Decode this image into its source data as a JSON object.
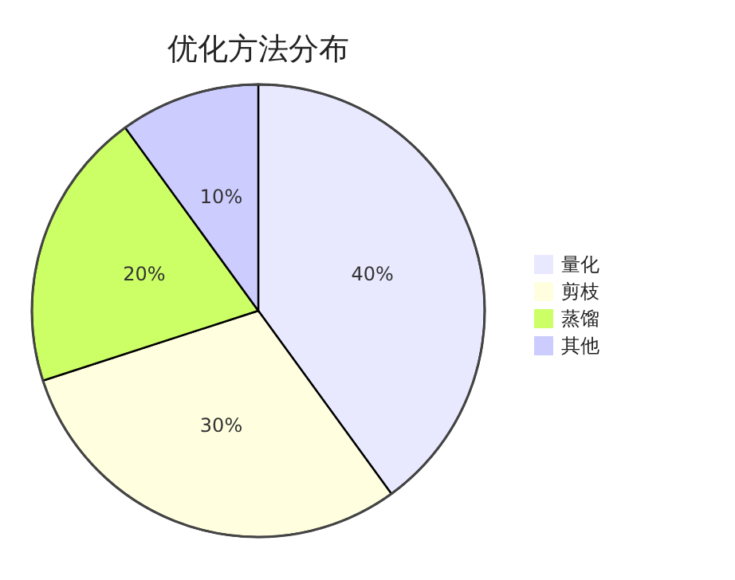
{
  "chart_data": {
    "type": "pie",
    "title": "优化方法分布",
    "categories": [
      "量化",
      "剪枝",
      "蒸馏",
      "其他"
    ],
    "values": [
      40,
      30,
      20,
      10
    ],
    "value_labels": [
      "40%",
      "30%",
      "20%",
      "10%"
    ],
    "colors": [
      "#e8e8ff",
      "#ffffe0",
      "#ccff66",
      "#ccccff"
    ],
    "legend": "right"
  }
}
